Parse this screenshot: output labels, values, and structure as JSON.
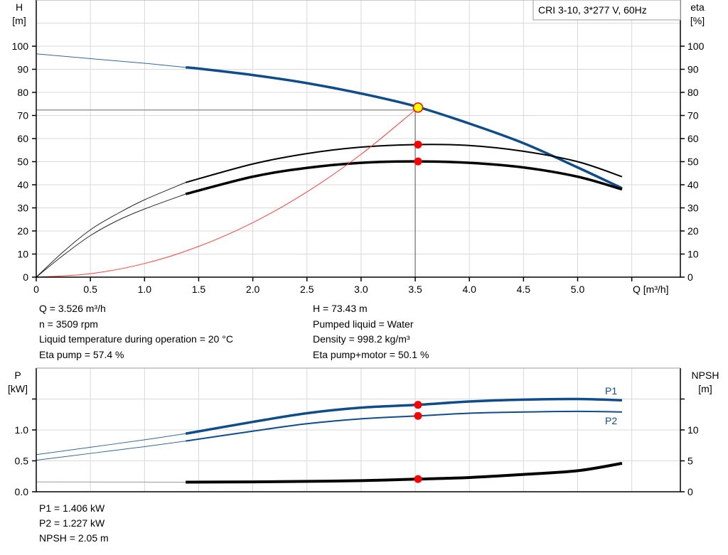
{
  "chart_data": [
    {
      "type": "line",
      "title": "CRI 3-10, 3*277 V, 60Hz",
      "xlabel": "Q [m³/h]",
      "ylabel_left": [
        "H",
        "[m]"
      ],
      "ylabel_right": [
        "eta",
        "[%]"
      ],
      "xlim": [
        0,
        5.9
      ],
      "ylim": [
        0,
        119
      ],
      "x_ticks": [
        "0",
        "0.5",
        "1.0",
        "1.5",
        "2.0",
        "2.5",
        "3.0",
        "3.5",
        "4.0",
        "4.5",
        "5.0"
      ],
      "y_ticks": [
        "0",
        "10",
        "20",
        "30",
        "40",
        "50",
        "60",
        "70",
        "80",
        "90",
        "100"
      ],
      "grid": true,
      "series": [
        {
          "key": "head",
          "axis": "left",
          "color": "#0f4c8a",
          "x": [
            0,
            0.5,
            1.0,
            1.38,
            1.5,
            2.0,
            2.5,
            3.0,
            3.5,
            4.0,
            4.5,
            5.0,
            5.41
          ],
          "y": [
            96.7,
            94.6,
            92.6,
            90.8,
            90.3,
            87.5,
            84.0,
            79.5,
            74.0,
            66.5,
            58.0,
            47.5,
            38.5
          ],
          "bold_from": 1.38
        },
        {
          "key": "eta-pump",
          "axis": "right",
          "color": "#000000",
          "x": [
            0,
            0.25,
            0.5,
            0.75,
            1.0,
            1.38,
            2.0,
            2.5,
            3.0,
            3.5,
            4.0,
            4.5,
            5.0,
            5.41
          ],
          "y": [
            0,
            11,
            20.5,
            27.5,
            33.5,
            41,
            49,
            53.5,
            56.3,
            57.4,
            57.0,
            54.5,
            50.0,
            43.5
          ],
          "bold_from": 1.38
        },
        {
          "key": "eta-pump-motor",
          "axis": "right",
          "color": "#000000",
          "x": [
            0,
            0.25,
            0.5,
            0.75,
            1.0,
            1.38,
            2.0,
            2.5,
            3.0,
            3.5,
            4.0,
            4.5,
            5.0,
            5.41
          ],
          "y": [
            0,
            9.5,
            18,
            24.5,
            29.5,
            36,
            43.5,
            47.3,
            49.5,
            50.1,
            49.5,
            47.5,
            43.5,
            38.0
          ],
          "bold_from": 1.38
        },
        {
          "key": "system-curve",
          "axis": "left",
          "color": "#ff4040",
          "x": [
            0,
            0.5,
            1.0,
            1.5,
            2.0,
            2.5,
            3.0,
            3.5
          ],
          "y": [
            0,
            1.5,
            5.9,
            13.3,
            23.6,
            36.9,
            53.2,
            72.4
          ]
        }
      ],
      "operating_point": {
        "Q": 3.526,
        "H": 73.43,
        "eta_pump": 57.4,
        "eta_pump_motor": 50.1,
        "H_ref_line": 72.4,
        "Q_ref_line": 3.5
      },
      "colors": {
        "operating_marker": "#ffff00",
        "marker": "#ff0000"
      }
    },
    {
      "type": "line",
      "ylabel_left": [
        "P",
        "[kW]"
      ],
      "ylabel_right": [
        "NPSH",
        "[m]"
      ],
      "xlim": [
        0,
        5.9
      ],
      "ylim_left": [
        0,
        1.99
      ],
      "ylim_right": [
        0,
        19.9
      ],
      "y_ticks_left": [
        "0.0",
        "0.5",
        "1.0"
      ],
      "y_ticks_right": [
        "0",
        "5",
        "10"
      ],
      "grid": true,
      "series": [
        {
          "key": "p1",
          "name": "P1",
          "axis": "left",
          "color": "#0f4c8a",
          "x": [
            0,
            0.5,
            1.0,
            1.38,
            2.0,
            2.5,
            3.0,
            3.526,
            4.0,
            4.5,
            5.0,
            5.41
          ],
          "y": [
            0.6,
            0.72,
            0.84,
            0.94,
            1.13,
            1.27,
            1.36,
            1.406,
            1.46,
            1.49,
            1.5,
            1.48
          ],
          "bold_from": 1.38
        },
        {
          "key": "p2",
          "name": "P2",
          "axis": "left",
          "color": "#0f4c8a",
          "x": [
            0,
            0.5,
            1.0,
            1.38,
            2.0,
            2.5,
            3.0,
            3.526,
            4.0,
            4.5,
            5.0,
            5.41
          ],
          "y": [
            0.51,
            0.62,
            0.73,
            0.82,
            0.98,
            1.1,
            1.18,
            1.227,
            1.27,
            1.29,
            1.3,
            1.29
          ],
          "bold_from": 1.38
        },
        {
          "key": "npsh",
          "axis": "right",
          "color": "#000000",
          "x": [
            0,
            0.5,
            1.0,
            1.38,
            2.0,
            2.5,
            3.0,
            3.526,
            4.0,
            4.5,
            5.0,
            5.41
          ],
          "y": [
            1.6,
            1.58,
            1.56,
            1.55,
            1.6,
            1.68,
            1.8,
            2.05,
            2.3,
            2.8,
            3.4,
            4.6
          ],
          "bold_from": 1.38
        }
      ],
      "operating_point": {
        "Q": 3.526,
        "P1": 1.406,
        "P2": 1.227,
        "NPSH": 2.05
      }
    }
  ],
  "info": {
    "left": [
      "Q = 3.526 m³/h",
      "n = 3509 rpm",
      "Liquid temperature during operation = 20 °C",
      "Eta pump = 57.4 %"
    ],
    "right": [
      "H = 73.43 m",
      "Pumped liquid = Water",
      "Density = 998.2 kg/m³",
      "Eta pump+motor = 50.1 %"
    ],
    "bottom": [
      "P1 = 1.406 kW",
      "P2 = 1.227 kW",
      "NPSH = 2.05 m"
    ]
  }
}
